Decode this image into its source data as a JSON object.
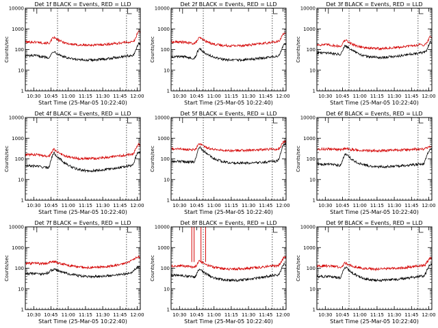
{
  "colors": {
    "events": "#000000",
    "lld": "#d40000",
    "axis": "#000000",
    "marker": "#000000"
  },
  "chart_data": [
    {
      "type": "line",
      "title": "Det 1f BLACK = Events, RED = LLD",
      "xlabel": "Start Time (25-Mar-05 10:22:40)",
      "ylabel": "Counts/sec",
      "yscale": "log",
      "ylim": [
        1,
        10000
      ],
      "yticks": [
        "1",
        "10",
        "100",
        "1000",
        "10000"
      ],
      "xticks": [
        "10:30",
        "10:45",
        "11:00",
        "11:15",
        "11:30",
        "11:45",
        "12:00"
      ],
      "xlim_min": [
        0,
        100
      ],
      "grid": false,
      "flare_times_min": [
        10,
        89
      ],
      "marker_min": [
        28,
        88
      ],
      "series": [
        {
          "name": "Events",
          "base": 50,
          "minimum": 30,
          "peaks": [
            [
              25,
              95,
              4
            ],
            [
              99,
              200,
              4
            ]
          ]
        },
        {
          "name": "LLD",
          "base": 230,
          "minimum": 160,
          "peaks": [
            [
              25,
              420,
              4
            ],
            [
              99,
              800,
              4
            ]
          ]
        }
      ],
      "spikes": []
    },
    {
      "type": "line",
      "title": "Det 2f BLACK = Events, RED = LLD",
      "xlabel": "Start Time (25-Mar-05 10:22:40)",
      "ylabel": "Counts/sec",
      "yscale": "log",
      "ylim": [
        1,
        10000
      ],
      "yticks": [
        "1",
        "10",
        "100",
        "1000",
        "10000"
      ],
      "xticks": [
        "10:30",
        "10:45",
        "11:00",
        "11:15",
        "11:30",
        "11:45",
        "12:00"
      ],
      "xlim_min": [
        0,
        100
      ],
      "grid": false,
      "flare_times_min": [
        10,
        89
      ],
      "marker_min": [
        28,
        88
      ],
      "series": [
        {
          "name": "Events",
          "base": 45,
          "minimum": 30,
          "peaks": [
            [
              25,
              120,
              4
            ],
            [
              99,
              180,
              5
            ]
          ]
        },
        {
          "name": "LLD",
          "base": 230,
          "minimum": 150,
          "peaks": [
            [
              25,
              420,
              4
            ],
            [
              99,
              650,
              5
            ]
          ]
        }
      ],
      "spikes": []
    },
    {
      "type": "line",
      "title": "Det 3f BLACK = Events, RED = LLD",
      "xlabel": "Start Time (25-Mar-05 10:22:40)",
      "ylabel": "Counts/sec",
      "yscale": "log",
      "ylim": [
        1,
        10000
      ],
      "yticks": [
        "1",
        "10",
        "100",
        "1000",
        "10000"
      ],
      "xticks": [
        "10:30",
        "10:45",
        "11:00",
        "11:15",
        "11:30",
        "11:45",
        "12:00"
      ],
      "xlim_min": [
        0,
        100
      ],
      "grid": false,
      "flare_times_min": [
        10,
        89
      ],
      "marker_min": [
        28,
        88
      ],
      "series": [
        {
          "name": "Events",
          "base": 70,
          "minimum": 40,
          "peaks": [
            [
              25,
              180,
              4
            ],
            [
              99,
              220,
              4
            ]
          ]
        },
        {
          "name": "LLD",
          "base": 170,
          "minimum": 110,
          "peaks": [
            [
              25,
              320,
              4
            ],
            [
              99,
              420,
              4
            ]
          ]
        }
      ],
      "spikes": []
    },
    {
      "type": "line",
      "title": "Det 4f BLACK = Events, RED = LLD",
      "xlabel": "Start Time (25-Mar-05 10:22:40)",
      "ylabel": "Counts/sec",
      "yscale": "log",
      "ylim": [
        1,
        10000
      ],
      "yticks": [
        "1",
        "10",
        "100",
        "1000",
        "10000"
      ],
      "xticks": [
        "10:30",
        "10:45",
        "11:00",
        "11:15",
        "11:30",
        "11:45",
        "12:00"
      ],
      "xlim_min": [
        0,
        100
      ],
      "grid": false,
      "flare_times_min": [
        10,
        89
      ],
      "marker_min": [
        28,
        88
      ],
      "series": [
        {
          "name": "Events",
          "base": 45,
          "minimum": 25,
          "peaks": [
            [
              25,
              200,
              4
            ],
            [
              99,
              220,
              5
            ]
          ]
        },
        {
          "name": "LLD",
          "base": 160,
          "minimum": 100,
          "peaks": [
            [
              25,
              320,
              4
            ],
            [
              99,
              500,
              5
            ]
          ]
        }
      ],
      "spikes": []
    },
    {
      "type": "line",
      "title": "Det 5f BLACK = Events, RED = LLD",
      "xlabel": "Start Time (25-Mar-05 10:22:40)",
      "ylabel": "Counts/sec",
      "yscale": "log",
      "ylim": [
        1,
        10000
      ],
      "yticks": [
        "1",
        "10",
        "100",
        "1000",
        "10000"
      ],
      "xticks": [
        "10:30",
        "10:45",
        "11:00",
        "11:15",
        "11:30",
        "11:45",
        "12:00"
      ],
      "xlim_min": [
        0,
        100
      ],
      "grid": false,
      "flare_times_min": [
        10,
        89
      ],
      "marker_min": [
        28,
        88
      ],
      "series": [
        {
          "name": "Events",
          "base": 75,
          "minimum": 60,
          "peaks": [
            [
              25,
              380,
              4
            ],
            [
              99,
              520,
              5
            ]
          ]
        },
        {
          "name": "LLD",
          "base": 300,
          "minimum": 250,
          "peaks": [
            [
              25,
              550,
              4
            ],
            [
              99,
              700,
              5
            ]
          ]
        }
      ],
      "spikes": []
    },
    {
      "type": "line",
      "title": "Det 6f BLACK = Events, RED = LLD",
      "xlabel": "Start Time (25-Mar-05 10:22:40)",
      "ylabel": "Counts/sec",
      "yscale": "log",
      "ylim": [
        1,
        10000
      ],
      "yticks": [
        "1",
        "10",
        "100",
        "1000",
        "10000"
      ],
      "xticks": [
        "10:30",
        "10:45",
        "11:00",
        "11:15",
        "11:30",
        "11:45",
        "12:00"
      ],
      "xlim_min": [
        0,
        100
      ],
      "grid": false,
      "flare_times_min": [
        10,
        89
      ],
      "marker_min": [
        28,
        88
      ],
      "series": [
        {
          "name": "Events",
          "base": 55,
          "minimum": 40,
          "peaks": [
            [
              25,
              180,
              4
            ],
            [
              99,
              300,
              5
            ]
          ]
        },
        {
          "name": "LLD",
          "base": 300,
          "minimum": 250,
          "peaks": [
            [
              25,
              350,
              4
            ],
            [
              99,
              380,
              5
            ]
          ]
        }
      ],
      "spikes": []
    },
    {
      "type": "line",
      "title": "Det 7f BLACK = Events, RED = LLD",
      "xlabel": "Start Time (25-Mar-05 10:22:40)",
      "ylabel": "Counts/sec",
      "yscale": "log",
      "ylim": [
        1,
        10000
      ],
      "yticks": [
        "1",
        "10",
        "100",
        "1000",
        "10000"
      ],
      "xticks": [
        "10:30",
        "10:45",
        "11:00",
        "11:15",
        "11:30",
        "11:45",
        "12:00"
      ],
      "xlim_min": [
        0,
        100
      ],
      "grid": false,
      "flare_times_min": [
        10,
        89
      ],
      "marker_min": [
        28,
        88
      ],
      "series": [
        {
          "name": "Events",
          "base": 55,
          "minimum": 35,
          "peaks": [
            [
              25,
              100,
              8
            ],
            [
              99,
              120,
              7
            ]
          ]
        },
        {
          "name": "LLD",
          "base": 170,
          "minimum": 90,
          "peaks": [
            [
              25,
              250,
              12
            ],
            [
              99,
              350,
              10
            ]
          ]
        }
      ],
      "spikes": []
    },
    {
      "type": "line",
      "title": "Det 8f BLACK = Events, RED = LLD",
      "xlabel": "Start Time (25-Mar-05 10:22:40)",
      "ylabel": "Counts/sec",
      "yscale": "log",
      "ylim": [
        1,
        10000
      ],
      "yticks": [
        "1",
        "10",
        "100",
        "1000",
        "10000"
      ],
      "xticks": [
        "10:30",
        "10:45",
        "11:00",
        "11:15",
        "11:30",
        "11:45",
        "12:00"
      ],
      "xlim_min": [
        0,
        100
      ],
      "grid": false,
      "flare_times_min": [
        10,
        89
      ],
      "marker_min": [
        28,
        88
      ],
      "series": [
        {
          "name": "Events",
          "base": 45,
          "minimum": 25,
          "peaks": [
            [
              25,
              100,
              4
            ],
            [
              99,
              160,
              5
            ]
          ]
        },
        {
          "name": "LLD",
          "base": 130,
          "minimum": 90,
          "peaks": [
            [
              25,
              250,
              4
            ],
            [
              99,
              350,
              5
            ]
          ]
        }
      ],
      "spikes": [
        [
          18,
          20
        ],
        [
          26,
          30
        ]
      ]
    },
    {
      "type": "line",
      "title": "Det 9f BLACK = Events, RED = LLD",
      "xlabel": "Start Time (25-Mar-05 10:22:40)",
      "ylabel": "Counts/sec",
      "yscale": "log",
      "ylim": [
        1,
        10000
      ],
      "yticks": [
        "1",
        "10",
        "100",
        "1000",
        "10000"
      ],
      "xticks": [
        "10:30",
        "10:45",
        "11:00",
        "11:15",
        "11:30",
        "11:45",
        "12:00"
      ],
      "xlim_min": [
        0,
        100
      ],
      "grid": false,
      "flare_times_min": [
        10,
        89
      ],
      "marker_min": [
        28,
        88
      ],
      "series": [
        {
          "name": "Events",
          "base": 40,
          "minimum": 25,
          "peaks": [
            [
              25,
              120,
              4
            ],
            [
              99,
              150,
              5
            ]
          ]
        },
        {
          "name": "LLD",
          "base": 130,
          "minimum": 90,
          "peaks": [
            [
              25,
              200,
              4
            ],
            [
              99,
              300,
              5
            ]
          ]
        }
      ],
      "spikes": []
    }
  ]
}
